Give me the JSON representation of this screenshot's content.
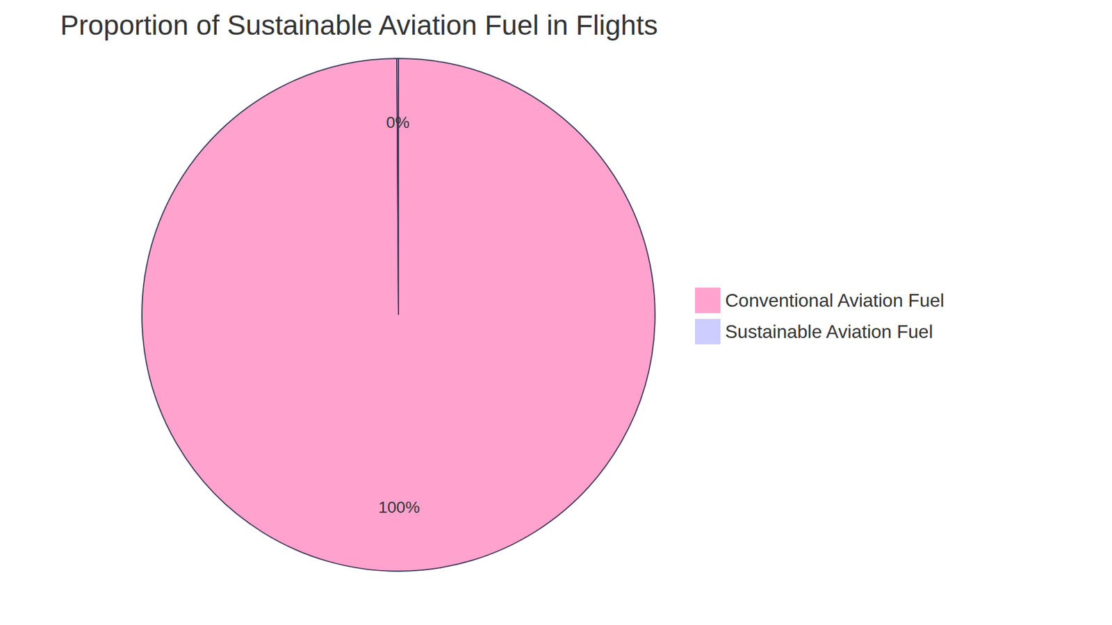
{
  "chart_data": {
    "type": "pie",
    "title": "Proportion of Sustainable Aviation Fuel in Flights",
    "categories": [
      "Conventional Aviation Fuel",
      "Sustainable Aviation Fuel"
    ],
    "values": [
      99.9,
      0.1
    ],
    "value_labels": [
      "100%",
      "0%"
    ],
    "colors": [
      "#ffa3ce",
      "#cdcdff"
    ],
    "data_labels": true,
    "legend": "right"
  }
}
